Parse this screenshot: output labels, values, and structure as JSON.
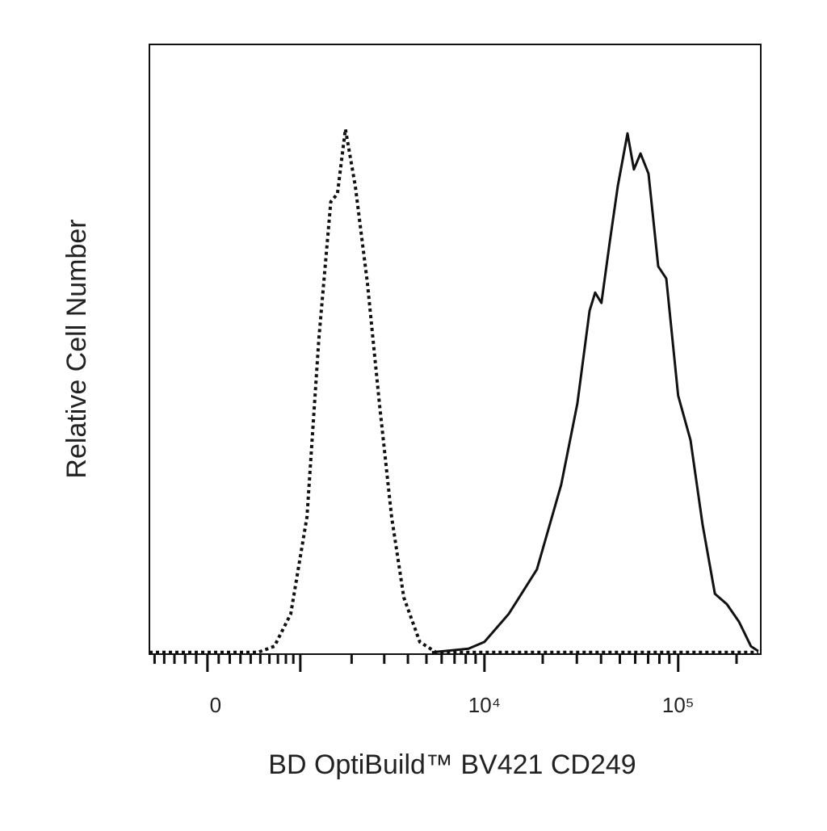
{
  "chart_data": {
    "type": "line",
    "xlabel": "BD OptiBuild™ BV421 CD249",
    "ylabel": "Relative Cell Number",
    "xscale": "biexponential",
    "xlim": [
      -556,
      266700
    ],
    "ylim": [
      0,
      100
    ],
    "xticks": [
      0,
      {
        "value": 1000,
        "label": null
      },
      {
        "value": 10000,
        "label": "10⁴"
      },
      {
        "value": 100000,
        "label": "10⁵"
      }
    ],
    "xminor_ticks": [
      -500,
      -400,
      -300,
      -200,
      -100,
      100,
      200,
      300,
      400,
      500,
      600,
      700,
      800,
      900,
      2000,
      3000,
      4000,
      5000,
      6000,
      7000,
      8000,
      9000,
      20000,
      30000,
      40000,
      50000,
      60000,
      70000,
      80000,
      90000,
      200000
    ],
    "series": [
      {
        "color": "#111111",
        "line_style": "dotted",
        "x": [
          -556,
          478,
          658,
          865,
          1102,
          1302,
          1529,
          1667,
          1849,
          2094,
          2437,
          2829,
          3283,
          3805,
          4618,
          5610,
          259000
        ],
        "values": [
          0.3,
          0.3,
          1.3,
          6.6,
          22.5,
          51.7,
          74.2,
          75.5,
          86.1,
          76.8,
          60.9,
          41.1,
          22.5,
          9.3,
          2.0,
          0.3,
          0.3
        ]
      },
      {
        "color": "#111111",
        "line_style": "solid",
        "x": [
          5341,
          8266,
          10000,
          13350,
          18660,
          24920,
          30200,
          34900,
          37300,
          40200,
          44300,
          48800,
          54800,
          59100,
          63900,
          70300,
          78900,
          86800,
          100000,
          115800,
          133700,
          154600,
          178300,
          206000,
          237300,
          259000
        ],
        "values": [
          0.3,
          0.9,
          2.0,
          6.6,
          13.9,
          27.8,
          41.1,
          56.3,
          59.3,
          57.6,
          67.5,
          76.8,
          85.4,
          79.5,
          82.1,
          78.8,
          63.6,
          61.6,
          42.4,
          35.1,
          21.2,
          9.9,
          8.2,
          5.3,
          1.3,
          0.5
        ]
      }
    ]
  }
}
